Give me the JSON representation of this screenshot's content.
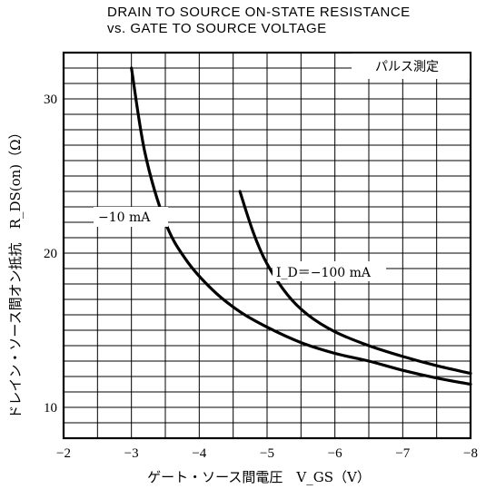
{
  "chart_data": {
    "type": "line",
    "title": "DRAIN TO SOURCE ON-STATE RESISTANCE",
    "subtitle": "vs. GATE TO SOURCE VOLTAGE",
    "xlabel": "ゲート・ソース間電圧　V_GS（V）",
    "ylabel": "ドレイン・ソース間オン抵抗　R_DS(on)（Ω）",
    "xlim": [
      -2,
      -8
    ],
    "ylim": [
      8,
      33
    ],
    "x_ticks": [
      -2,
      -3,
      -4,
      -5,
      -6,
      -7,
      -8
    ],
    "x_tick_labels": [
      "−2",
      "−3",
      "−4",
      "−5",
      "−6",
      "−7",
      "−8"
    ],
    "y_ticks": [
      10,
      20,
      30
    ],
    "y_tick_labels": [
      "10",
      "20",
      "30"
    ],
    "grid": true,
    "annotations": {
      "measurement": "パルス測定",
      "series_a": "−10 mA",
      "series_b": "I_D＝−100 mA"
    },
    "series": [
      {
        "name": "−10 mA",
        "x": [
          -3.0,
          -3.2,
          -3.5,
          -3.8,
          -4.2,
          -4.6,
          -5.0,
          -5.5,
          -6.0,
          -6.5,
          -7.0,
          -7.5,
          -8.0
        ],
        "y": [
          32.0,
          26.5,
          22.0,
          19.6,
          17.6,
          16.2,
          15.2,
          14.2,
          13.5,
          13.0,
          12.4,
          11.9,
          11.5
        ]
      },
      {
        "name": "I_D＝−100 mA",
        "x": [
          -4.6,
          -4.8,
          -5.0,
          -5.3,
          -5.6,
          -6.0,
          -6.5,
          -7.0,
          -7.5,
          -8.0
        ],
        "y": [
          24.0,
          21.3,
          19.3,
          17.3,
          16.0,
          14.9,
          14.0,
          13.3,
          12.7,
          12.2
        ]
      }
    ]
  }
}
